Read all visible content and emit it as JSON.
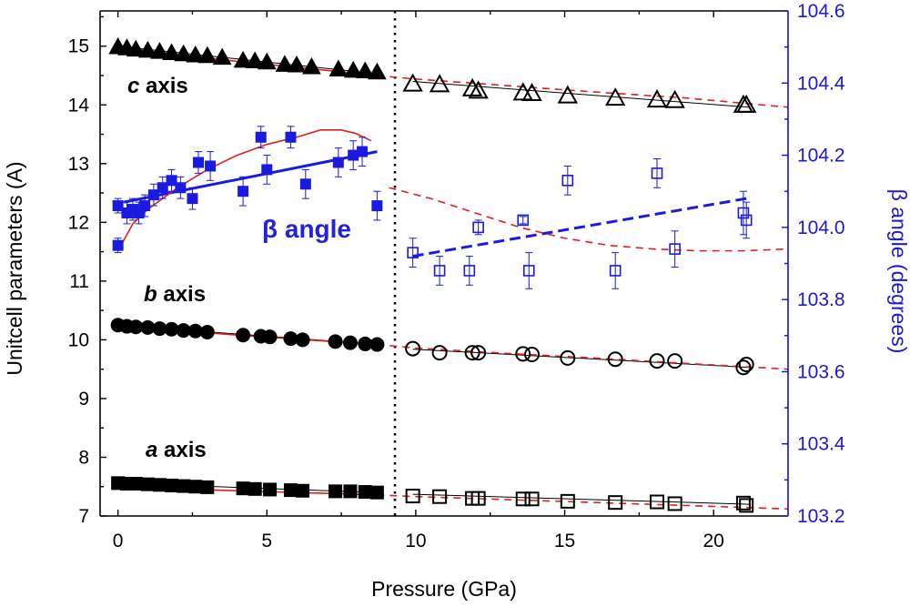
{
  "chart_data": {
    "type": "scatter",
    "xlabel": "Pressure (GPa)",
    "ylabel": "Unitcell parameters (A)",
    "y2label": "β angle (degrees)",
    "xlim": [
      -0.6,
      22.5
    ],
    "ylim": [
      7.0,
      15.6
    ],
    "y2lim": [
      103.2,
      104.6
    ],
    "xticks": [
      0,
      5,
      10,
      15,
      20
    ],
    "yticks": [
      7,
      8,
      9,
      10,
      11,
      12,
      13,
      14,
      15
    ],
    "y2ticks": [
      103.2,
      103.4,
      103.6,
      103.8,
      104.0,
      104.2,
      104.4,
      104.6
    ],
    "transition_pressure": 9.3,
    "annotations": {
      "c_axis": {
        "italic": "c",
        "rest": " axis"
      },
      "b_axis": {
        "italic": "b",
        "rest": " axis"
      },
      "a_axis": {
        "italic": "a",
        "rest": " axis"
      },
      "beta": "β angle"
    },
    "series": [
      {
        "name": "c axis (low P)",
        "marker": "triangle",
        "filled": true,
        "color": "#000000",
        "x": [
          0,
          0.3,
          0.6,
          1.0,
          1.4,
          1.8,
          2.2,
          2.6,
          3.0,
          3.5,
          4.2,
          4.6,
          5.0,
          5.6,
          6.0,
          6.5,
          7.4,
          7.9,
          8.3,
          8.7
        ],
        "y": [
          14.98,
          14.96,
          14.94,
          14.92,
          14.9,
          14.88,
          14.86,
          14.84,
          14.83,
          14.8,
          14.75,
          14.74,
          14.72,
          14.68,
          14.67,
          14.64,
          14.6,
          14.58,
          14.57,
          14.55
        ]
      },
      {
        "name": "c axis (high P)",
        "marker": "triangle",
        "filled": false,
        "color": "#000000",
        "x": [
          9.9,
          10.8,
          11.9,
          12.1,
          13.6,
          13.9,
          15.1,
          16.7,
          18.1,
          18.7,
          21.0,
          21.1
        ],
        "y": [
          14.35,
          14.34,
          14.27,
          14.23,
          14.2,
          14.19,
          14.15,
          14.11,
          14.08,
          14.07,
          13.99,
          13.99
        ]
      },
      {
        "name": "b axis (low P)",
        "marker": "circle",
        "filled": true,
        "color": "#000000",
        "x": [
          0,
          0.3,
          0.6,
          1.0,
          1.4,
          1.8,
          2.2,
          2.6,
          3.0,
          4.2,
          4.8,
          5.1,
          5.8,
          6.2,
          7.3,
          7.8,
          8.3,
          8.7
        ],
        "y": [
          10.25,
          10.23,
          10.22,
          10.21,
          10.19,
          10.18,
          10.16,
          10.15,
          10.13,
          10.08,
          10.06,
          10.05,
          10.02,
          10.0,
          9.97,
          9.95,
          9.93,
          9.92
        ]
      },
      {
        "name": "b axis (high P)",
        "marker": "circle",
        "filled": false,
        "color": "#000000",
        "x": [
          9.9,
          10.8,
          11.9,
          12.1,
          13.6,
          13.9,
          15.1,
          16.7,
          18.1,
          18.7,
          21.0,
          21.1
        ],
        "y": [
          9.85,
          9.78,
          9.78,
          9.78,
          9.76,
          9.75,
          9.69,
          9.67,
          9.64,
          9.64,
          9.53,
          9.58
        ]
      },
      {
        "name": "a axis (low P)",
        "marker": "square",
        "filled": true,
        "color": "#000000",
        "x": [
          0,
          0.3,
          0.6,
          1.0,
          1.4,
          1.8,
          2.2,
          2.6,
          3.0,
          4.2,
          4.6,
          5.1,
          5.8,
          6.2,
          7.3,
          7.8,
          8.3,
          8.7
        ],
        "y": [
          7.56,
          7.55,
          7.55,
          7.54,
          7.53,
          7.52,
          7.51,
          7.5,
          7.49,
          7.47,
          7.46,
          7.45,
          7.44,
          7.43,
          7.42,
          7.42,
          7.41,
          7.4
        ]
      },
      {
        "name": "a axis (high P)",
        "marker": "square",
        "filled": false,
        "color": "#000000",
        "x": [
          9.9,
          10.8,
          11.9,
          12.1,
          13.6,
          13.9,
          15.1,
          16.7,
          18.1,
          18.7,
          21.0,
          21.1
        ],
        "y": [
          7.34,
          7.33,
          7.3,
          7.3,
          7.29,
          7.29,
          7.25,
          7.23,
          7.24,
          7.21,
          7.22,
          7.18
        ]
      },
      {
        "name": "β angle (low P)",
        "axis": "y2",
        "marker": "square",
        "filled": true,
        "color": "#1a1ae0",
        "x": [
          0,
          0.0,
          0.3,
          0.5,
          0.7,
          0.9,
          1.2,
          1.5,
          1.8,
          2.1,
          2.5,
          2.7,
          3.1,
          4.2,
          4.8,
          5.0,
          5.8,
          6.3,
          7.4,
          7.9,
          8.2,
          8.7
        ],
        "y": [
          104.06,
          103.95,
          104.04,
          104.05,
          104.04,
          104.06,
          104.09,
          104.11,
          104.13,
          104.11,
          104.08,
          104.18,
          104.17,
          104.1,
          104.25,
          104.16,
          104.25,
          104.12,
          104.18,
          104.2,
          104.21,
          104.06
        ],
        "yerr": [
          0.02,
          0.02,
          0.03,
          0.03,
          0.03,
          0.03,
          0.03,
          0.03,
          0.03,
          0.03,
          0.03,
          0.03,
          0.04,
          0.04,
          0.03,
          0.04,
          0.03,
          0.04,
          0.04,
          0.04,
          0.04,
          0.04
        ]
      },
      {
        "name": "β angle (high P)",
        "axis": "y2",
        "marker": "square",
        "filled": false,
        "color": "#1a1ae0",
        "x": [
          9.9,
          10.8,
          11.8,
          12.1,
          13.6,
          13.8,
          15.1,
          16.7,
          18.1,
          18.7,
          21.0,
          21.1
        ],
        "y": [
          103.93,
          103.88,
          103.88,
          104.0,
          104.02,
          103.88,
          104.13,
          103.88,
          104.15,
          103.94,
          104.04,
          104.02
        ],
        "yerr": [
          0.04,
          0.04,
          0.04,
          0.02,
          0.01,
          0.05,
          0.04,
          0.05,
          0.04,
          0.05,
          0.06,
          0.05
        ]
      }
    ],
    "fit_lines": [
      {
        "name": "c fit low",
        "style": "solid",
        "color": "#000000",
        "x": [
          0,
          8.7
        ],
        "y": [
          15.0,
          14.53
        ]
      },
      {
        "name": "c fit high",
        "style": "solid",
        "color": "#000000",
        "x": [
          9.9,
          21.2
        ],
        "y": [
          14.4,
          13.96
        ]
      },
      {
        "name": "b fit low",
        "style": "solid",
        "color": "#000000",
        "x": [
          0,
          8.7
        ],
        "y": [
          10.25,
          9.92
        ]
      },
      {
        "name": "b fit high",
        "style": "solid",
        "color": "#000000",
        "x": [
          9.9,
          21.2
        ],
        "y": [
          9.84,
          9.53
        ]
      },
      {
        "name": "a fit low",
        "style": "solid",
        "color": "#000000",
        "x": [
          0,
          8.7
        ],
        "y": [
          7.56,
          7.4
        ]
      },
      {
        "name": "a fit high",
        "style": "solid",
        "color": "#000000",
        "x": [
          9.9,
          21.2
        ],
        "y": [
          7.37,
          7.2
        ]
      },
      {
        "name": "c eos",
        "style": "solid-dashed",
        "color": "#e02020",
        "x": [
          0,
          2,
          4,
          6,
          8.7,
          10,
          13,
          16,
          19,
          22.5
        ],
        "y": [
          14.98,
          14.86,
          14.74,
          14.64,
          14.5,
          14.44,
          14.33,
          14.22,
          14.12,
          13.96
        ]
      },
      {
        "name": "b eos",
        "style": "solid-dashed",
        "color": "#e02020",
        "x": [
          0,
          2,
          4,
          6,
          8.7,
          10,
          13,
          16,
          19,
          22.5
        ],
        "y": [
          10.24,
          10.16,
          10.08,
          10.01,
          9.92,
          9.86,
          9.77,
          9.69,
          9.6,
          9.5
        ]
      },
      {
        "name": "a eos",
        "style": "solid-dashed",
        "color": "#e02020",
        "x": [
          0,
          2,
          4,
          6,
          8.7,
          10,
          13,
          16,
          19,
          22.5
        ],
        "y": [
          7.5,
          7.46,
          7.43,
          7.4,
          7.36,
          7.33,
          7.28,
          7.23,
          7.18,
          7.12
        ]
      },
      {
        "name": "β fit low",
        "axis": "y2",
        "style": "solid",
        "color": "#1a1ae0",
        "x": [
          0.2,
          8.7
        ],
        "y": [
          104.07,
          104.21
        ]
      },
      {
        "name": "β fit high",
        "axis": "y2",
        "style": "dashed",
        "color": "#1a1ae0",
        "x": [
          9.9,
          21.1
        ],
        "y": [
          103.92,
          104.08
        ]
      },
      {
        "name": "β calc low",
        "axis": "y2",
        "style": "solid",
        "color": "#e02020",
        "x": [
          0.1,
          0.5,
          1.0,
          2.0,
          3.0,
          4.0,
          5.0,
          6.0,
          6.8,
          7.5,
          8.0,
          8.5
        ],
        "y": [
          103.95,
          104.01,
          104.05,
          104.11,
          104.16,
          104.2,
          104.23,
          104.25,
          104.27,
          104.27,
          104.26,
          104.24
        ]
      },
      {
        "name": "β calc high",
        "axis": "y2",
        "style": "dashed",
        "color": "#e02020",
        "x": [
          9.1,
          10.5,
          12.0,
          13.5,
          15.0,
          16.5,
          18.0,
          19.5,
          21.0,
          22.5
        ],
        "y": [
          104.11,
          104.08,
          104.04,
          104.0,
          103.97,
          103.95,
          103.94,
          103.935,
          103.935,
          103.94
        ]
      }
    ]
  }
}
